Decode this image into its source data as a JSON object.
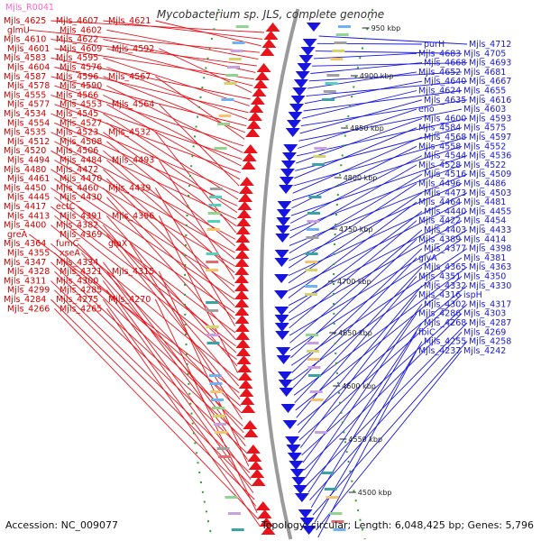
{
  "title": "Mycobacterium sp. JLS, complete genome",
  "footer": {
    "accession": "Accession: NC_009077",
    "topology": "Topology: circular; Length: 6,048,425 bp; Genes: 5,796"
  },
  "colors": {
    "forward": "#e8131b",
    "reverse": "#1616e0",
    "backbone": "#9a9a9a",
    "tick_dots": "#2f9e2f",
    "left_label": "#d40000",
    "right_label": "#1a1ad0"
  },
  "top_label": "Mjls_R0041",
  "ticks": [
    "950 kbp",
    "4900 kbp",
    "4850 kbp",
    "4800 kbp",
    "4750 kbp",
    "4700 kbp",
    "4650 kbp",
    "4600 kbp",
    "4550 kbp",
    "4500 kbp"
  ],
  "left_labels": [
    "Mjls_4625",
    "Mjls_4607",
    "Mjls_4621",
    "glmU",
    "Mjls_4602",
    "Mjls_4610",
    "Mjls_4622",
    "Mjls_4601",
    "Mjls_4609",
    "Mjls_4592",
    "Mjls_4583",
    "Mjls_4595",
    "Mjls_4604",
    "Mjls_4576",
    "Mjls_4587",
    "Mjls_4596",
    "Mjls_4567",
    "Mjls_4578",
    "Mjls_4590",
    "Mjls_4555",
    "Mjls_4566",
    "Mjls_4577",
    "Mjls_4553",
    "Mjls_4564",
    "Mjls_4534",
    "Mjls_4545",
    "Mjls_4554",
    "Mjls_4527",
    "Mjls_4535",
    "Mjls_4523",
    "Mjls_4532",
    "Mjls_4512",
    "Mjls_4508",
    "Mjls_4520",
    "Mjls_4506",
    "Mjls_4494",
    "Mjls_4484",
    "Mjls_4493",
    "Mjls_4480",
    "Mjls_4472",
    "Mjls_4461",
    "Mjls_4470",
    "Mjls_4450",
    "Mjls_4460",
    "Mjls_4439",
    "Mjls_4445",
    "Mjls_4430",
    "Mjls_4417",
    "ectC",
    "Mjls_4413",
    "Mjls_4391",
    "Mjls_4396",
    "Mjls_4400",
    "Mjls_4382",
    "greA",
    "Mjls_4369",
    "Mjls_4364",
    "fumC",
    "glpX",
    "Mjls_4355",
    "xseA",
    "Mjls_4347",
    "Mjls_4334",
    "Mjls_4328",
    "Mjls_4321",
    "Mjls_4315",
    "Mjls_4311",
    "Mjls_4300",
    "Mjls_4299",
    "Mjls_4285",
    "Mjls_4284",
    "Mjls_4275",
    "Mjls_4270",
    "Mjls_4266",
    "Mjls_4265"
  ],
  "right_labels": [
    "Mjls_4712",
    "purH",
    "Mjls_4705",
    "Mjls_4683",
    "Mjls_4693",
    "Mjls_4668",
    "Mjls_4681",
    "Mjls_4652",
    "Mjls_4667",
    "Mjls_4640",
    "Mjls_4655",
    "Mjls_4624",
    "Mjls_4616",
    "Mjls_4635",
    "Mjls_4603",
    "eno",
    "Mjls_4593",
    "Mjls_4600",
    "Mjls_4575",
    "Mjls_4584",
    "Mjls_4597",
    "Mjls_4568",
    "Mjls_4552",
    "Mjls_4558",
    "Mjls_4536",
    "Mjls_4544",
    "Mjls_4522",
    "Mjls_4528",
    "Mjls_4509",
    "Mjls_4516",
    "Mjls_4486",
    "Mjls_4496",
    "Mjls_4503",
    "Mjls_4473",
    "Mjls_4481",
    "Mjls_4464",
    "Mjls_4455",
    "Mjls_4440",
    "Mjls_4454",
    "Mjls_4422",
    "Mjls_4433",
    "Mjls_4403",
    "Mjls_4414",
    "Mjls_4389",
    "Mjls_4398",
    "Mjls_4377",
    "Mjls_4381",
    "glyA",
    "Mjls_4363",
    "Mjls_4365",
    "Mjls_4350",
    "Mjls_4351",
    "Mjls_4330",
    "Mjls_4332",
    "ispH",
    "Mjls_4316",
    "Mjls_4317",
    "Mjls_4302",
    "Mjls_4303",
    "Mjls_4286",
    "Mjls_4287",
    "Mjls_4268",
    "Mjls_4269",
    "fbiC",
    "Mjls_4258",
    "Mjls_4255",
    "Mjls_4242",
    "Mjls_4237"
  ]
}
